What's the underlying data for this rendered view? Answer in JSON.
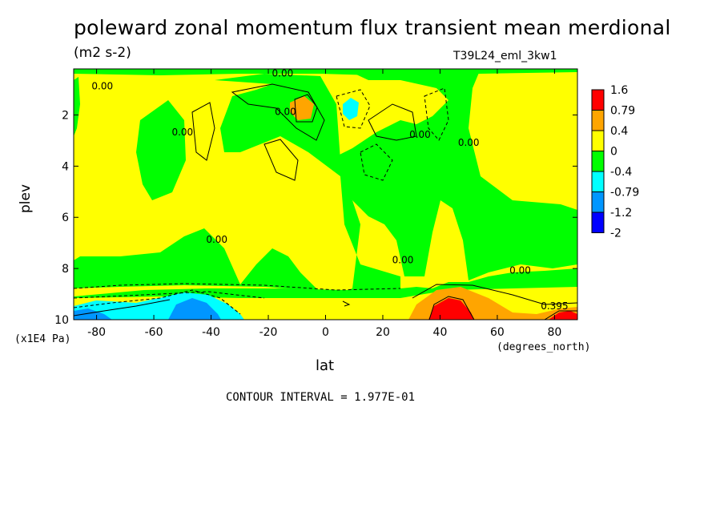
{
  "chart_data": {
    "type": "heatmap",
    "title": "poleward zonal momentum flux transient mean merdional",
    "units": "(m2 s-2)",
    "experiment": "T39L24_eml_3kw1",
    "xlabel": "lat",
    "ylabel": "plev",
    "x_unit": "(degrees_north)",
    "y_unit": "(x1E4 Pa)",
    "footer": "CONTOUR INTERVAL = 1.977E-01",
    "xlim": [
      -88,
      88
    ],
    "ylim": [
      0.2,
      10
    ],
    "y_inverted": true,
    "x_ticks": [
      -80,
      -60,
      -40,
      -20,
      0,
      20,
      40,
      60,
      80
    ],
    "x_tick_labels": [
      "-80",
      "-60",
      "-40",
      "-20",
      "0",
      "20",
      "40",
      "60",
      "80"
    ],
    "y_ticks": [
      2,
      4,
      6,
      8,
      10
    ],
    "y_tick_labels": [
      "2",
      "4",
      "6",
      "8",
      "10"
    ],
    "colorbar": {
      "levels": [
        1.6,
        0.79,
        0.4,
        0,
        -0.4,
        -0.79,
        -1.2,
        -2
      ],
      "labels": [
        "1.6",
        "0.79",
        "0.4",
        "0",
        "-0.4",
        "-0.79",
        "-1.2",
        "-2"
      ],
      "colors": [
        "#ff0000",
        "#ffa500",
        "#ffff00",
        "#00ff00",
        "#00ffff",
        "#0096ff",
        "#0000ff"
      ]
    },
    "contour_labels": [
      {
        "text": "0.00",
        "lat": -78,
        "p": 1.0
      },
      {
        "text": "0.00",
        "lat": -50,
        "p": 2.8
      },
      {
        "text": "0.00",
        "lat": -38,
        "p": 7.0
      },
      {
        "text": "0.00",
        "lat": -15,
        "p": 0.5
      },
      {
        "text": "0.00",
        "lat": -14,
        "p": 2.0
      },
      {
        "text": "0.00",
        "lat": 33,
        "p": 2.9
      },
      {
        "text": "0.00",
        "lat": 50,
        "p": 3.2
      },
      {
        "text": "0.00",
        "lat": 27,
        "p": 7.8
      },
      {
        "text": "0.00",
        "lat": 68,
        "p": 8.2
      },
      {
        "text": "0.395",
        "lat": 80,
        "p": 9.6
      }
    ]
  }
}
